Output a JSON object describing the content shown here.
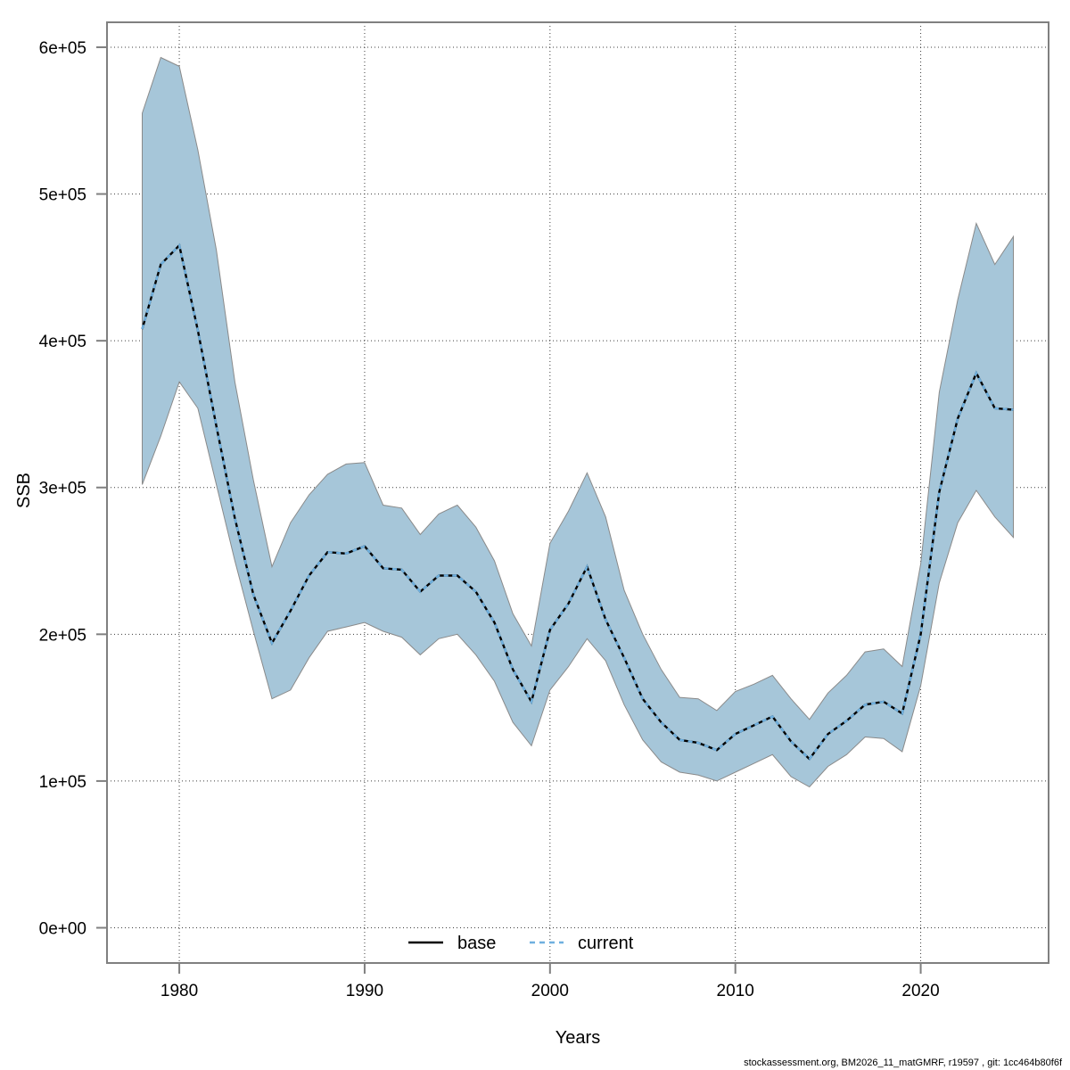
{
  "page": {
    "background": "#ffffff"
  },
  "footer": {
    "text": "stockassessment.org, BM2026_11_matGMRF, r19597 , git: 1cc464b80f6f"
  },
  "chart_data": {
    "type": "line",
    "title": "",
    "xlabel": "Years",
    "ylabel": "SSB",
    "grid": true,
    "xlim": [
      1976.1,
      2026.9
    ],
    "ylim": [
      -24000,
      617000
    ],
    "x_ticks": [
      {
        "value": 1980,
        "label": "1980"
      },
      {
        "value": 1990,
        "label": "1990"
      },
      {
        "value": 2000,
        "label": "2000"
      },
      {
        "value": 2010,
        "label": "2010"
      },
      {
        "value": 2020,
        "label": "2020"
      }
    ],
    "y_ticks": [
      {
        "value": 0,
        "label": "0e+00"
      },
      {
        "value": 100000,
        "label": "1e+05"
      },
      {
        "value": 200000,
        "label": "2e+05"
      },
      {
        "value": 300000,
        "label": "3e+05"
      },
      {
        "value": 400000,
        "label": "4e+05"
      },
      {
        "value": 500000,
        "label": "5e+05"
      },
      {
        "value": 600000,
        "label": "6e+05"
      }
    ],
    "colors": {
      "band": "#A6C6D9",
      "band_edge": "#8A8A8A",
      "grid": "#3C3C3C",
      "frame": "#808080",
      "text": "#000000"
    },
    "legend": {
      "position": "bottom-center-inside",
      "entries": [
        {
          "label": "base",
          "line_style": "solid",
          "color": "#000000"
        },
        {
          "label": "current",
          "line_style": "dashed",
          "color": "#6FB0DF"
        }
      ]
    },
    "x": [
      1978,
      1979,
      1980,
      1981,
      1982,
      1983,
      1984,
      1985,
      1986,
      1987,
      1988,
      1989,
      1990,
      1991,
      1992,
      1993,
      1994,
      1995,
      1996,
      1997,
      1998,
      1999,
      2000,
      2001,
      2002,
      2003,
      2004,
      2005,
      2006,
      2007,
      2008,
      2009,
      2010,
      2011,
      2012,
      2013,
      2014,
      2015,
      2016,
      2017,
      2018,
      2019,
      2020,
      2021,
      2022,
      2023,
      2024,
      2025
    ],
    "series": [
      {
        "name": "base",
        "line_style": "solid",
        "color": "#000000",
        "note": "coincides exactly with current line (visible as dark segments between dashes)",
        "values": [
          408000,
          452000,
          465000,
          407000,
          342000,
          279000,
          227000,
          194000,
          216000,
          240000,
          256000,
          255000,
          260000,
          245000,
          244000,
          229000,
          240000,
          240000,
          229000,
          208000,
          176000,
          154000,
          203000,
          221000,
          246000,
          210000,
          184000,
          156000,
          140000,
          128000,
          126000,
          121000,
          132000,
          138000,
          144000,
          127000,
          115000,
          132000,
          141000,
          152000,
          154000,
          146000,
          200000,
          297000,
          347000,
          378000,
          354000,
          353000
        ]
      },
      {
        "name": "current",
        "line_style": "dashed",
        "color": "#6FB0DF",
        "values": [
          408000,
          452000,
          465000,
          407000,
          342000,
          279000,
          227000,
          194000,
          216000,
          240000,
          256000,
          255000,
          260000,
          245000,
          244000,
          229000,
          240000,
          240000,
          229000,
          208000,
          176000,
          154000,
          203000,
          221000,
          246000,
          210000,
          184000,
          156000,
          140000,
          128000,
          126000,
          121000,
          132000,
          138000,
          144000,
          127000,
          115000,
          132000,
          141000,
          152000,
          154000,
          146000,
          200000,
          297000,
          347000,
          378000,
          354000,
          353000
        ],
        "ci_low": [
          302000,
          335000,
          372000,
          354000,
          302000,
          250000,
          202000,
          156000,
          162000,
          184000,
          202000,
          205000,
          208000,
          202000,
          198000,
          186000,
          197000,
          200000,
          186000,
          168000,
          140000,
          124000,
          162000,
          178000,
          197000,
          182000,
          152000,
          128000,
          113000,
          106000,
          104000,
          100000,
          106000,
          112000,
          118000,
          103000,
          96000,
          110000,
          118000,
          130000,
          129000,
          120000,
          165000,
          235000,
          276000,
          298000,
          280000,
          266000
        ],
        "ci_high": [
          555000,
          593000,
          587000,
          530000,
          462000,
          372000,
          305000,
          246000,
          276000,
          295000,
          309000,
          316000,
          317000,
          288000,
          286000,
          268000,
          282000,
          288000,
          273000,
          250000,
          214000,
          192000,
          262000,
          284000,
          310000,
          280000,
          230000,
          200000,
          176000,
          157000,
          156000,
          148000,
          161000,
          166000,
          172000,
          156000,
          142000,
          160000,
          172000,
          188000,
          190000,
          178000,
          248000,
          365000,
          428000,
          480000,
          452000,
          471000
        ]
      }
    ]
  }
}
